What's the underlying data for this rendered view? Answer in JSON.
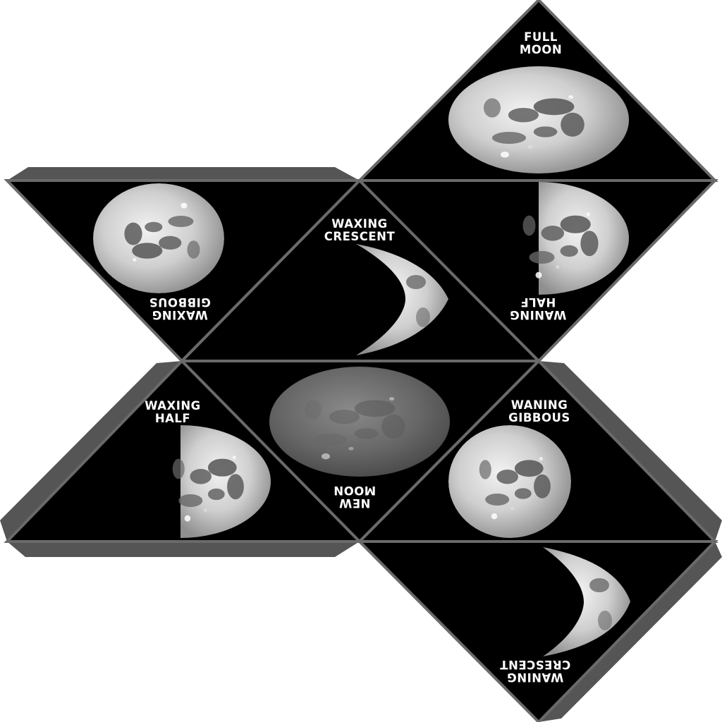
{
  "colors": {
    "face": "#000000",
    "tab": "#555555",
    "edge": "#6a6a6a",
    "label": "#ffffff",
    "background": "#ffffff"
  },
  "faces": {
    "full_moon": {
      "line1": "FULL",
      "line2": "MOON"
    },
    "waxing_gibbous": {
      "line1": "WAXING",
      "line2": "GIBBOUS"
    },
    "waxing_crescent": {
      "line1": "WAXING",
      "line2": "CRESCENT"
    },
    "waning_half": {
      "line1": "WANING",
      "line2": "HALF"
    },
    "waxing_half": {
      "line1": "WAXING",
      "line2": "HALF"
    },
    "new_moon": {
      "line1": "NEW",
      "line2": "MOON"
    },
    "waning_gibbous": {
      "line1": "WANING",
      "line2": "GIBBOUS"
    },
    "waning_crescent": {
      "line1": "WANING",
      "line2": "CRESCENT"
    }
  }
}
